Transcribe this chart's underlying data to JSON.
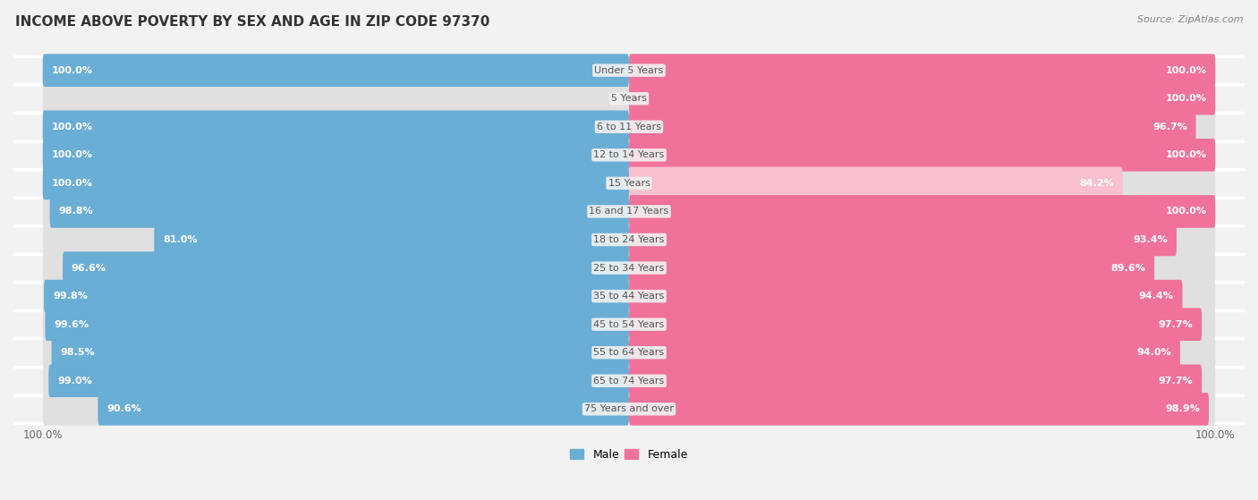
{
  "title": "INCOME ABOVE POVERTY BY SEX AND AGE IN ZIP CODE 97370",
  "source": "Source: ZipAtlas.com",
  "categories": [
    "Under 5 Years",
    "5 Years",
    "6 to 11 Years",
    "12 to 14 Years",
    "15 Years",
    "16 and 17 Years",
    "18 to 24 Years",
    "25 to 34 Years",
    "35 to 44 Years",
    "45 to 54 Years",
    "55 to 64 Years",
    "65 to 74 Years",
    "75 Years and over"
  ],
  "male": [
    100.0,
    0.0,
    100.0,
    100.0,
    100.0,
    98.8,
    81.0,
    96.6,
    99.8,
    99.6,
    98.5,
    99.0,
    90.6
  ],
  "female": [
    100.0,
    100.0,
    96.7,
    100.0,
    84.2,
    100.0,
    93.4,
    89.6,
    94.4,
    97.7,
    94.0,
    97.7,
    98.9
  ],
  "male_color": "#6aaed6",
  "female_color": "#f0729a",
  "male_light_color": "#c5dff0",
  "female_light_color": "#f9c0d0",
  "male_label_color": "#ffffff",
  "female_label_color": "#ffffff",
  "background_color": "#f2f2f2",
  "bar_bg_color": "#e0e0e0",
  "title_fontsize": 11,
  "label_fontsize": 8,
  "category_fontsize": 8,
  "legend_fontsize": 9,
  "bar_height": 0.58,
  "xlim_max": 105
}
